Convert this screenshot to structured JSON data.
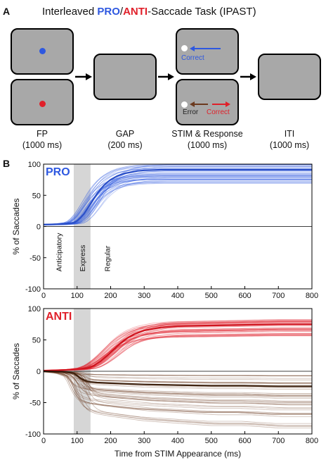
{
  "panel_a": {
    "letter": "A",
    "title_prefix": "Interleaved ",
    "title_pro": "PRO",
    "title_sep": "/",
    "title_anti": "ANTI",
    "title_suffix": "-Saccade Task (IPAST)",
    "stages": [
      {
        "name": "FP",
        "duration": "(1000 ms)"
      },
      {
        "name": "GAP",
        "duration": "(200 ms)"
      },
      {
        "name": "STIM & Response",
        "duration": "(1000 ms)"
      },
      {
        "name": "ITI",
        "duration": "(1000 ms)"
      }
    ],
    "labels": {
      "correct_pro": "Correct",
      "error": "Error",
      "correct_anti": "Correct"
    },
    "colors": {
      "screen": "#a8a8a8",
      "pro": "#2e58e0",
      "anti": "#e0202a",
      "error": "#6b3a1f",
      "fixation_dot": "#ffffff"
    }
  },
  "panel_b": {
    "letter": "B",
    "phase_labels": [
      "Anticipatory",
      "Express",
      "Regular"
    ],
    "xlabel": "Time from STIM Appearance (ms)"
  },
  "chart_data": [
    {
      "type": "line",
      "panel_label": "PRO",
      "ylabel": "% of Saccades",
      "xlim": [
        0,
        800
      ],
      "ylim": [
        -100,
        100
      ],
      "xticks": [
        0,
        100,
        200,
        300,
        400,
        500,
        600,
        700,
        800
      ],
      "yticks": [
        -100,
        -50,
        0,
        50,
        100
      ],
      "shaded_window": [
        90,
        140
      ],
      "series": [
        {
          "color": "#2e58e0",
          "x": [
            0,
            60,
            90,
            100,
            110,
            120,
            130,
            140,
            150,
            160,
            170,
            180,
            190,
            200,
            220,
            240,
            260,
            280,
            300,
            350,
            400,
            500,
            600,
            700,
            800
          ],
          "y": [
            3,
            4,
            6,
            9,
            14,
            20,
            28,
            36,
            45,
            53,
            60,
            66,
            71,
            75,
            81,
            85,
            87,
            89,
            90,
            91,
            91,
            91,
            91,
            91,
            91
          ]
        }
      ]
    },
    {
      "type": "line",
      "panel_label": "ANTI",
      "ylabel": "% of Saccades",
      "xlabel": "Time from STIM Appearance (ms)",
      "xlim": [
        0,
        800
      ],
      "ylim": [
        -100,
        100
      ],
      "xticks": [
        0,
        100,
        200,
        300,
        400,
        500,
        600,
        700,
        800
      ],
      "yticks": [
        -100,
        -50,
        0,
        50,
        100
      ],
      "shaded_window": [
        90,
        140
      ],
      "series": [
        {
          "color": "#e0202a",
          "x": [
            0,
            60,
            100,
            130,
            150,
            170,
            190,
            210,
            230,
            250,
            270,
            300,
            350,
            400,
            500,
            600,
            700,
            800
          ],
          "y": [
            1,
            2,
            3,
            5,
            9,
            16,
            25,
            35,
            45,
            53,
            59,
            65,
            70,
            72,
            73,
            74,
            75,
            75
          ]
        },
        {
          "color": "#6b3a1f",
          "x": [
            0,
            60,
            90,
            100,
            110,
            120,
            130,
            140,
            160,
            200,
            250,
            300,
            400,
            500,
            600,
            700,
            800
          ],
          "y": [
            0,
            -1,
            -3,
            -7,
            -11,
            -14,
            -16,
            -17,
            -18,
            -19,
            -20,
            -21,
            -22,
            -23,
            -23,
            -24,
            -24
          ]
        }
      ]
    }
  ]
}
